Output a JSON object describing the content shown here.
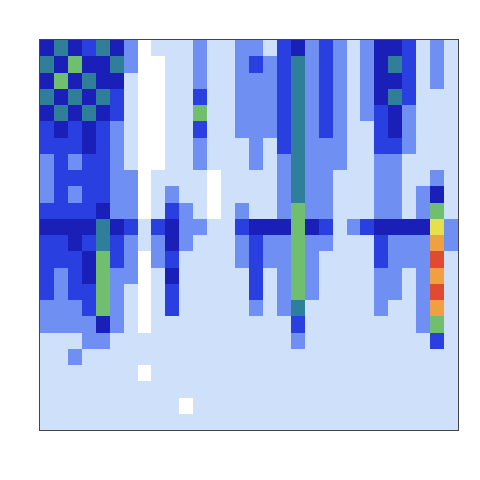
{
  "chart_data": {
    "type": "heatmap",
    "tick_labels": false,
    "zlim": [
      0,
      9
    ],
    "colors": [
      "#ffffff",
      "#cfe0fb",
      "#6f8ff2",
      "#2a3fe0",
      "#1a1fb8",
      "#2f7f9a",
      "#6fbf6f",
      "#e6e04a",
      "#f0a040",
      "#e04a30"
    ],
    "cells": [
      [
        4,
        5,
        4,
        3,
        5,
        4,
        2,
        0,
        1,
        1,
        1,
        2,
        1,
        1,
        2,
        2,
        1,
        3,
        4,
        2,
        3,
        2,
        1,
        2,
        4,
        4,
        3,
        1,
        2,
        1
      ],
      [
        5,
        4,
        6,
        4,
        4,
        5,
        2,
        0,
        0,
        1,
        1,
        2,
        1,
        1,
        2,
        3,
        2,
        3,
        5,
        2,
        3,
        2,
        1,
        2,
        4,
        5,
        3,
        1,
        2,
        1
      ],
      [
        4,
        6,
        4,
        5,
        4,
        4,
        1,
        0,
        0,
        1,
        1,
        2,
        1,
        1,
        2,
        2,
        2,
        3,
        5,
        2,
        3,
        2,
        1,
        2,
        4,
        4,
        3,
        1,
        2,
        1
      ],
      [
        5,
        4,
        5,
        4,
        5,
        3,
        1,
        0,
        0,
        1,
        1,
        3,
        1,
        1,
        2,
        2,
        2,
        3,
        5,
        2,
        3,
        2,
        1,
        2,
        4,
        5,
        3,
        1,
        1,
        1
      ],
      [
        4,
        5,
        4,
        5,
        4,
        3,
        1,
        0,
        0,
        1,
        1,
        6,
        1,
        1,
        2,
        2,
        2,
        3,
        5,
        2,
        3,
        2,
        1,
        2,
        3,
        4,
        2,
        1,
        1,
        1
      ],
      [
        3,
        4,
        3,
        4,
        3,
        2,
        1,
        0,
        0,
        1,
        1,
        3,
        1,
        1,
        2,
        2,
        2,
        3,
        5,
        2,
        3,
        2,
        1,
        1,
        3,
        4,
        2,
        1,
        1,
        1
      ],
      [
        3,
        3,
        3,
        4,
        3,
        2,
        1,
        0,
        0,
        1,
        1,
        2,
        1,
        1,
        1,
        2,
        1,
        3,
        5,
        2,
        2,
        2,
        1,
        1,
        3,
        3,
        2,
        1,
        1,
        1
      ],
      [
        2,
        3,
        2,
        3,
        3,
        2,
        1,
        0,
        0,
        1,
        1,
        2,
        1,
        1,
        1,
        2,
        1,
        2,
        5,
        2,
        2,
        2,
        1,
        1,
        2,
        2,
        1,
        1,
        1,
        1
      ],
      [
        2,
        3,
        3,
        3,
        3,
        2,
        2,
        0,
        1,
        1,
        1,
        1,
        0,
        1,
        1,
        1,
        1,
        2,
        5,
        2,
        2,
        1,
        1,
        1,
        2,
        2,
        1,
        1,
        2,
        1
      ],
      [
        2,
        3,
        2,
        3,
        3,
        2,
        2,
        0,
        1,
        2,
        1,
        1,
        0,
        1,
        1,
        1,
        1,
        2,
        5,
        2,
        2,
        1,
        1,
        1,
        2,
        2,
        1,
        2,
        4,
        1
      ],
      [
        3,
        3,
        3,
        3,
        4,
        2,
        2,
        0,
        1,
        3,
        2,
        1,
        0,
        1,
        2,
        1,
        1,
        2,
        6,
        2,
        2,
        1,
        1,
        1,
        2,
        2,
        1,
        2,
        6,
        1
      ],
      [
        4,
        4,
        4,
        4,
        5,
        4,
        3,
        1,
        3,
        4,
        2,
        2,
        1,
        1,
        3,
        4,
        4,
        4,
        6,
        4,
        3,
        1,
        2,
        3,
        4,
        4,
        4,
        4,
        7,
        2
      ],
      [
        3,
        3,
        4,
        3,
        5,
        3,
        2,
        1,
        2,
        4,
        2,
        1,
        1,
        1,
        2,
        3,
        2,
        2,
        6,
        2,
        2,
        1,
        1,
        1,
        3,
        2,
        2,
        2,
        8,
        2
      ],
      [
        3,
        3,
        3,
        4,
        6,
        3,
        2,
        0,
        2,
        3,
        1,
        1,
        1,
        1,
        2,
        3,
        2,
        2,
        6,
        2,
        1,
        1,
        1,
        1,
        3,
        2,
        2,
        2,
        9,
        1
      ],
      [
        3,
        2,
        3,
        4,
        6,
        2,
        2,
        0,
        1,
        4,
        1,
        1,
        1,
        1,
        1,
        3,
        1,
        2,
        6,
        2,
        1,
        1,
        1,
        1,
        2,
        2,
        1,
        2,
        8,
        1
      ],
      [
        3,
        2,
        3,
        3,
        6,
        2,
        1,
        0,
        1,
        3,
        1,
        1,
        1,
        1,
        1,
        3,
        1,
        2,
        6,
        2,
        1,
        1,
        1,
        1,
        2,
        2,
        1,
        2,
        9,
        1
      ],
      [
        2,
        2,
        2,
        3,
        6,
        2,
        1,
        0,
        1,
        3,
        1,
        1,
        1,
        1,
        1,
        2,
        1,
        2,
        5,
        1,
        1,
        1,
        1,
        1,
        2,
        1,
        1,
        2,
        8,
        1
      ],
      [
        2,
        2,
        2,
        2,
        4,
        2,
        1,
        0,
        1,
        1,
        1,
        1,
        1,
        1,
        1,
        1,
        1,
        1,
        3,
        1,
        1,
        1,
        1,
        1,
        1,
        1,
        1,
        2,
        6,
        1
      ],
      [
        1,
        1,
        1,
        2,
        2,
        1,
        1,
        1,
        1,
        1,
        1,
        1,
        1,
        1,
        1,
        1,
        1,
        1,
        2,
        1,
        1,
        1,
        1,
        1,
        1,
        1,
        1,
        1,
        3,
        1
      ],
      [
        1,
        1,
        2,
        1,
        1,
        1,
        1,
        1,
        1,
        1,
        1,
        1,
        1,
        1,
        1,
        1,
        1,
        1,
        1,
        1,
        1,
        1,
        1,
        1,
        1,
        1,
        1,
        1,
        1,
        1
      ],
      [
        1,
        1,
        1,
        1,
        1,
        1,
        1,
        0,
        1,
        1,
        1,
        1,
        1,
        1,
        1,
        1,
        1,
        1,
        1,
        1,
        1,
        1,
        1,
        1,
        1,
        1,
        1,
        1,
        1,
        1
      ],
      [
        1,
        1,
        1,
        1,
        1,
        1,
        1,
        1,
        1,
        1,
        1,
        1,
        1,
        1,
        1,
        1,
        1,
        1,
        1,
        1,
        1,
        1,
        1,
        1,
        1,
        1,
        1,
        1,
        1,
        1
      ],
      [
        1,
        1,
        1,
        1,
        1,
        1,
        1,
        1,
        1,
        1,
        0,
        1,
        1,
        1,
        1,
        1,
        1,
        1,
        1,
        1,
        1,
        1,
        1,
        1,
        1,
        1,
        1,
        1,
        1,
        1
      ],
      [
        1,
        1,
        1,
        1,
        1,
        1,
        1,
        1,
        1,
        1,
        1,
        1,
        1,
        1,
        1,
        1,
        1,
        1,
        1,
        1,
        1,
        1,
        1,
        1,
        1,
        1,
        1,
        1,
        1,
        1
      ]
    ]
  }
}
